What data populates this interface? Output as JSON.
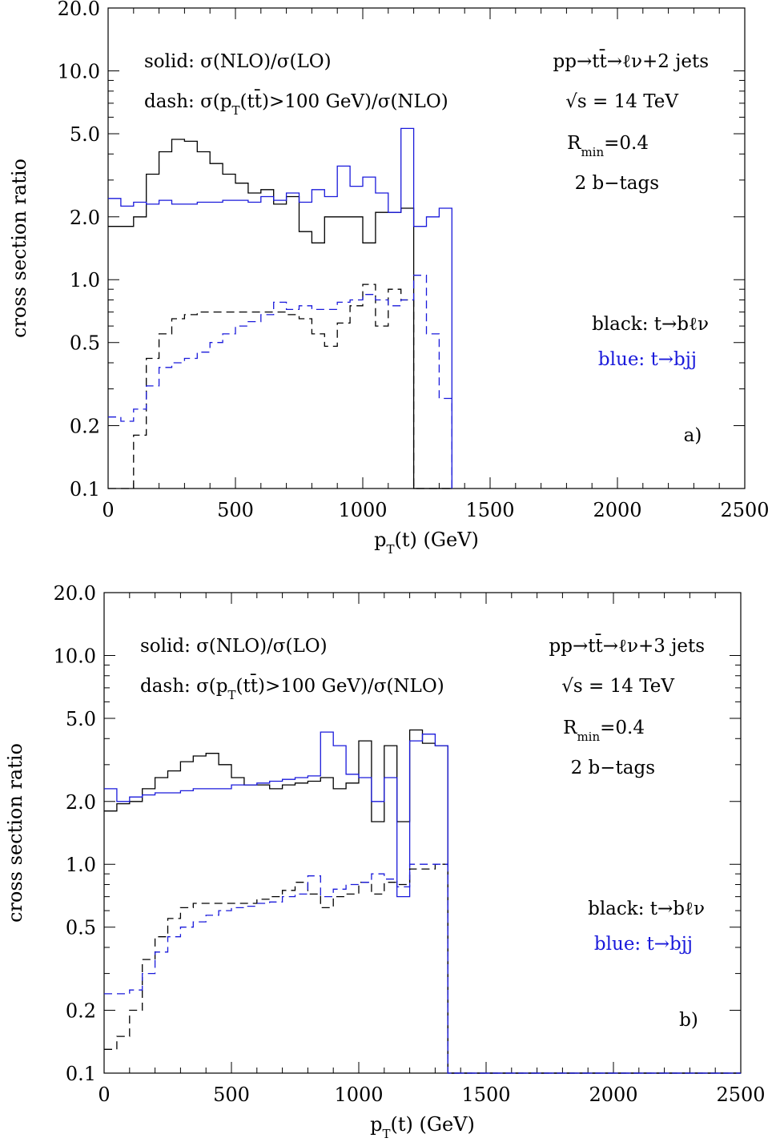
{
  "chart_data": [
    {
      "type": "line",
      "panel_label": "a)",
      "xlabel": "p_T(t) (GeV)",
      "ylabel": "cross section ratio",
      "xlim": [
        0,
        2500
      ],
      "ylim": [
        0.1,
        20.0
      ],
      "yscale": "log",
      "x_ticks": [
        "0",
        "500",
        "1000",
        "1500",
        "2000",
        "2500"
      ],
      "y_ticks": [
        "0.1",
        "0.2",
        "0.5",
        "1.0",
        "2.0",
        "5.0",
        "10.0",
        "20.0"
      ],
      "annotations": {
        "solid": "solid: σ(NLO)/σ(LO)",
        "dash": "dash: σ(p_T(tt̄)>100 GeV)/σ(NLO)",
        "process": "pp→tt̄→ℓν+2 jets",
        "sqrt_s": "√s = 14 TeV",
        "rmin": "R_min=0.4",
        "btags": "2 b−tags",
        "black_legend": "black: t→bℓν",
        "blue_legend": "blue: t→bjj"
      },
      "bin_edges": [
        0,
        50,
        100,
        150,
        200,
        250,
        300,
        350,
        400,
        450,
        500,
        550,
        600,
        650,
        700,
        750,
        800,
        850,
        900,
        950,
        1000,
        1050,
        1100,
        1150,
        1200,
        1250,
        1300,
        1350
      ],
      "series": [
        {
          "color": "#000000",
          "style": "solid",
          "values": [
            1.8,
            1.8,
            2.0,
            3.2,
            4.1,
            4.7,
            4.6,
            4.1,
            3.6,
            3.2,
            2.9,
            2.6,
            2.7,
            2.3,
            2.5,
            1.7,
            1.5,
            2.0,
            2.0,
            2.0,
            1.5,
            2.1,
            2.1,
            2.2,
            0.1,
            0.1,
            0.1
          ]
        },
        {
          "color": "#1a1adb",
          "style": "solid",
          "values": [
            2.45,
            2.25,
            2.35,
            2.3,
            2.4,
            2.3,
            2.3,
            2.35,
            2.35,
            2.4,
            2.4,
            2.35,
            2.5,
            2.4,
            2.6,
            2.35,
            2.7,
            2.5,
            3.5,
            2.8,
            3.1,
            2.6,
            2.1,
            5.3,
            1.8,
            2.0,
            2.2
          ]
        },
        {
          "color": "#000000",
          "style": "dash",
          "values": [
            0.1,
            0.1,
            0.18,
            0.42,
            0.55,
            0.65,
            0.68,
            0.7,
            0.7,
            0.7,
            0.7,
            0.7,
            0.7,
            0.7,
            0.68,
            0.65,
            0.55,
            0.48,
            0.62,
            0.75,
            0.95,
            0.6,
            0.9,
            0.8,
            0.1,
            0.1,
            0.1
          ]
        },
        {
          "color": "#1a1adb",
          "style": "dash",
          "values": [
            0.22,
            0.21,
            0.24,
            0.31,
            0.38,
            0.4,
            0.42,
            0.45,
            0.5,
            0.55,
            0.6,
            0.63,
            0.68,
            0.78,
            0.72,
            0.75,
            0.72,
            0.72,
            0.78,
            0.8,
            0.85,
            0.8,
            0.75,
            0.8,
            1.05,
            0.55,
            0.27
          ]
        }
      ]
    },
    {
      "type": "line",
      "panel_label": "b)",
      "xlabel": "p_T(t) (GeV)",
      "ylabel": "cross section ratio",
      "xlim": [
        0,
        2500
      ],
      "ylim": [
        0.1,
        20.0
      ],
      "yscale": "log",
      "x_ticks": [
        "0",
        "500",
        "1000",
        "1500",
        "2000",
        "2500"
      ],
      "y_ticks": [
        "0.1",
        "0.2",
        "0.5",
        "1.0",
        "2.0",
        "5.0",
        "10.0",
        "20.0"
      ],
      "annotations": {
        "solid": "solid: σ(NLO)/σ(LO)",
        "dash": "dash: σ(p_T(tt̄)>100 GeV)/σ(NLO)",
        "process": "pp→tt̄→ℓν+3 jets",
        "sqrt_s": "√s = 14 TeV",
        "rmin": "R_min=0.4",
        "btags": "2 b−tags",
        "black_legend": "black: t→bℓν",
        "blue_legend": "blue: t→bjj"
      },
      "bin_edges": [
        0,
        50,
        100,
        150,
        200,
        250,
        300,
        350,
        400,
        450,
        500,
        550,
        600,
        650,
        700,
        750,
        800,
        850,
        900,
        950,
        1000,
        1050,
        1100,
        1150,
        1200,
        1250,
        1300,
        1350
      ],
      "series": [
        {
          "color": "#000000",
          "style": "solid",
          "values": [
            1.8,
            1.95,
            2.0,
            2.3,
            2.6,
            2.8,
            3.1,
            3.3,
            3.4,
            3.0,
            2.6,
            2.4,
            2.4,
            2.3,
            2.4,
            2.45,
            2.5,
            2.6,
            2.3,
            2.45,
            3.9,
            1.6,
            3.7,
            1.6,
            4.4,
            3.8,
            3.7
          ]
        },
        {
          "color": "#1a1adb",
          "style": "solid",
          "values": [
            2.3,
            2.0,
            2.1,
            2.15,
            2.2,
            2.2,
            2.25,
            2.3,
            2.3,
            2.3,
            2.4,
            2.4,
            2.45,
            2.5,
            2.55,
            2.6,
            2.65,
            4.3,
            3.7,
            2.7,
            2.6,
            2.0,
            2.6,
            0.7,
            3.9,
            4.2,
            3.7
          ]
        },
        {
          "color": "#000000",
          "style": "dash",
          "values": [
            0.13,
            0.15,
            0.2,
            0.35,
            0.45,
            0.55,
            0.62,
            0.65,
            0.65,
            0.65,
            0.65,
            0.65,
            0.68,
            0.7,
            0.75,
            0.82,
            0.72,
            0.62,
            0.7,
            0.72,
            0.82,
            0.72,
            0.82,
            0.8,
            0.95,
            0.95,
            1.0
          ]
        },
        {
          "color": "#1a1adb",
          "style": "dash",
          "values": [
            0.24,
            0.24,
            0.25,
            0.3,
            0.38,
            0.45,
            0.5,
            0.53,
            0.57,
            0.6,
            0.62,
            0.63,
            0.65,
            0.66,
            0.7,
            0.72,
            0.88,
            0.7,
            0.76,
            0.8,
            0.82,
            0.9,
            0.85,
            0.78,
            1.0,
            1.0,
            1.0
          ]
        }
      ]
    }
  ]
}
